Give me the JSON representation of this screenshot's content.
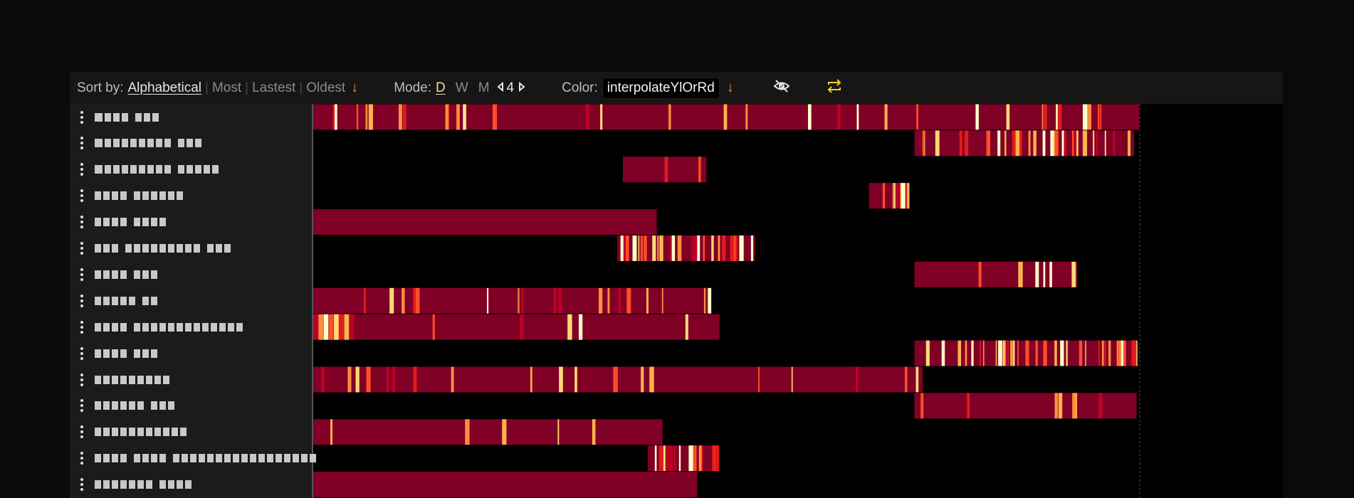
{
  "toolbar": {
    "sort": {
      "label": "Sort by:",
      "options": [
        "Alphabetical",
        "Most",
        "Lastest",
        "Oldest"
      ],
      "active": "Alphabetical"
    },
    "mode": {
      "label": "Mode:",
      "options": [
        "D",
        "W",
        "M"
      ],
      "active": "D",
      "value": "4"
    },
    "color": {
      "label": "Color:",
      "scheme": "interpolateYlOrRd"
    },
    "icons": {
      "sort_direction": "arrow-down-icon",
      "color_direction": "arrow-down-icon",
      "visibility": "eye-off-icon",
      "swap": "repeat-icon"
    },
    "colors": {
      "accent": "#f08a3c",
      "swap": "#f2d024"
    }
  },
  "colors": {
    "base": "#800026",
    "scale": [
      "#bd0026",
      "#e31a1c",
      "#fc4e2a",
      "#fd8d3c",
      "#feb24c",
      "#fed976",
      "#ffffcc"
    ]
  },
  "rows": [
    {
      "spans": [
        [
          0.0,
          1.0
        ]
      ],
      "seed": 3,
      "density": 34
    },
    {
      "spans": [
        [
          0.728,
          0.994
        ]
      ],
      "seed": 11,
      "density": 30
    },
    {
      "spans": [
        [
          0.375,
          0.476
        ]
      ],
      "seed": 17,
      "density": 3
    },
    {
      "spans": [
        [
          0.673,
          0.722
        ]
      ],
      "seed": 23,
      "density": 8
    },
    {
      "spans": [
        [
          0.0,
          0.416
        ]
      ],
      "seed": 29,
      "density": 0
    },
    {
      "spans": [
        [
          0.368,
          0.535
        ]
      ],
      "seed": 31,
      "density": 28
    },
    {
      "spans": [
        [
          0.728,
          0.925
        ]
      ],
      "seed": 37,
      "density": 6
    },
    {
      "spans": [
        [
          0.0,
          0.482
        ]
      ],
      "seed": 41,
      "density": 18
    },
    {
      "spans": [
        [
          0.0,
          0.492
        ]
      ],
      "seed": 43,
      "density": 6,
      "hot_start": 0.05
    },
    {
      "spans": [
        [
          0.728,
          0.998
        ]
      ],
      "seed": 47,
      "density": 38
    },
    {
      "spans": [
        [
          0.0,
          0.738
        ]
      ],
      "seed": 53,
      "density": 20
    },
    {
      "spans": [
        [
          0.728,
          0.997
        ]
      ],
      "seed": 59,
      "density": 8
    },
    {
      "spans": [
        [
          0.0,
          0.423
        ]
      ],
      "seed": 61,
      "density": 5
    },
    {
      "spans": [
        [
          0.405,
          0.492
        ]
      ],
      "seed": 67,
      "density": 16
    },
    {
      "spans": [
        [
          0.0,
          0.465
        ]
      ],
      "seed": 71,
      "density": 0
    }
  ],
  "names": [
    [
      4,
      3,
      3,
      3,
      0,
      3,
      3,
      3
    ],
    [
      4,
      3,
      3,
      3,
      3,
      3,
      3,
      3,
      3,
      0,
      3,
      3,
      3
    ],
    [
      4,
      3,
      3,
      3,
      3,
      3,
      3,
      3,
      3,
      0,
      3,
      3,
      3,
      3,
      3
    ],
    [
      3,
      3,
      3,
      3,
      0,
      3,
      3,
      3,
      3,
      3,
      3
    ],
    [
      3,
      3,
      3,
      3,
      0,
      3,
      3,
      3,
      3
    ],
    [
      3,
      3,
      3,
      0,
      3,
      3,
      3,
      3,
      3,
      3,
      3,
      3,
      3,
      0,
      3,
      3,
      3
    ],
    [
      3,
      3,
      3,
      3,
      0,
      3,
      3,
      3
    ],
    [
      3,
      3,
      3,
      3,
      3,
      0,
      3,
      3
    ],
    [
      3,
      3,
      3,
      3,
      0,
      3,
      3,
      3,
      3,
      3,
      3,
      3,
      3,
      3,
      3,
      3,
      3,
      3
    ],
    [
      3,
      3,
      3,
      3,
      0,
      3,
      3,
      3
    ],
    [
      3,
      3,
      3,
      3,
      3,
      3,
      3,
      3,
      3
    ],
    [
      3,
      3,
      3,
      3,
      3,
      3,
      0,
      3,
      3,
      3
    ],
    [
      3,
      3,
      3,
      3,
      3,
      3,
      3,
      3,
      3,
      3,
      3
    ],
    [
      3,
      3,
      3,
      3,
      0,
      3,
      3,
      3,
      3,
      0,
      3,
      3,
      3,
      3,
      3,
      3,
      3,
      3,
      3,
      3,
      3,
      3,
      3,
      3,
      3,
      3,
      3
    ],
    [
      3,
      3,
      3,
      3,
      3,
      3,
      3,
      0,
      3,
      3,
      3,
      3
    ]
  ]
}
